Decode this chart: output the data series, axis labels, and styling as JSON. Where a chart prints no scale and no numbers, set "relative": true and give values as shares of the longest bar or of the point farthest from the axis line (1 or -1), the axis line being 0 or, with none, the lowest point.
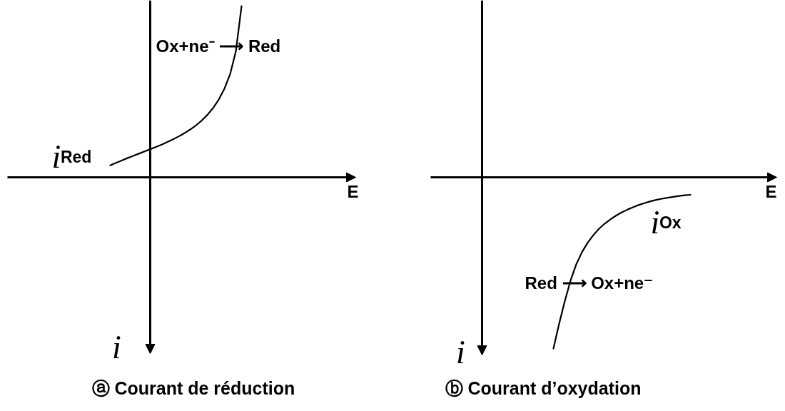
{
  "chart_data": [
    {
      "type": "line",
      "title": "ⓐ Courant de réduction",
      "xlabel": "E",
      "relative": true,
      "categories": [
        null,
        null,
        null,
        null,
        null,
        null,
        null,
        null,
        null,
        null,
        null,
        null,
        null,
        null,
        null,
        null,
        null,
        null,
        null,
        null,
        null,
        null,
        null,
        null,
        null,
        null,
        null,
        null,
        null,
        null,
        null,
        null,
        null,
        null,
        null,
        null,
        null,
        null,
        null,
        null,
        null,
        null,
        null,
        null,
        null,
        null,
        null,
        null,
        null,
        null,
        null,
        null,
        null,
        null,
        null,
        null,
        null,
        null,
        null,
        null,
        null
      ],
      "series": [
        {
          "color": "#000000",
          "values": [
            null,
            null,
            null,
            null,
            null,
            null,
            null,
            null,
            null,
            null,
            null,
            null,
            null,
            null,
            null,
            null,
            null,
            null,
            0.07,
            0.084,
            0.098,
            0.112,
            0.125,
            0.138,
            0.151,
            0.164,
            0.177,
            0.191,
            0.206,
            0.222,
            0.239,
            0.258,
            0.279,
            0.303,
            0.331,
            0.364,
            0.404,
            0.454,
            0.518,
            0.603,
            0.735,
            1,
            null,
            null,
            null,
            null,
            null,
            null,
            null,
            null,
            null,
            null,
            null,
            null,
            null,
            null,
            null,
            null,
            null,
            null,
            null
          ]
        }
      ],
      "annotations": [
        "Ox+ne⁻ ⟶ Red",
        "i$_{Red}$",
        "i"
      ]
    },
    {
      "type": "line",
      "title": "ⓑ Courant d’oxydation",
      "xlabel": "E",
      "relative": true,
      "categories": [
        null,
        null,
        null,
        null,
        null,
        null,
        null,
        null,
        null,
        null,
        null,
        null,
        null,
        null,
        null,
        null,
        null,
        null,
        null,
        null,
        null,
        null,
        null,
        null,
        null,
        null,
        null,
        null,
        null,
        null,
        null,
        null,
        null,
        null,
        null,
        null,
        null,
        null,
        null,
        null,
        null,
        null,
        null,
        null,
        null,
        null,
        null,
        null,
        null,
        null,
        null,
        null,
        null,
        null,
        null,
        null,
        null,
        null,
        null,
        null,
        null
      ],
      "series": [
        {
          "color": "#000000",
          "values": [
            null,
            null,
            null,
            null,
            null,
            null,
            null,
            null,
            null,
            null,
            null,
            null,
            null,
            null,
            null,
            null,
            null,
            null,
            null,
            null,
            null,
            -1,
            -0.855,
            -0.722,
            -0.603,
            -0.508,
            -0.437,
            -0.382,
            -0.337,
            -0.3,
            -0.27,
            -0.245,
            -0.223,
            -0.204,
            -0.188,
            -0.174,
            -0.161,
            -0.15,
            -0.14,
            -0.132,
            -0.125,
            -0.119,
            -0.114,
            -0.109,
            -0.105,
            -0.102,
            null,
            null,
            null,
            null,
            null,
            null,
            null,
            null,
            null,
            null,
            null,
            null,
            null,
            null,
            null
          ]
        }
      ],
      "annotations": [
        "i$_{Ox}$",
        "Red ⟶ Ox+ne⁻",
        "i"
      ]
    }
  ]
}
